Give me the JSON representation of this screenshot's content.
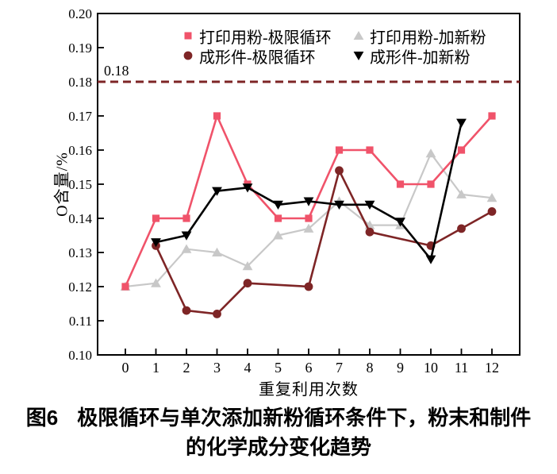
{
  "figure": {
    "caption": {
      "fig_label": "图6",
      "line1": "极限循环与单次添加新粉循环条件下，粉末和制件",
      "line2": "的化学成分变化趋势"
    }
  },
  "chart_data": {
    "type": "line",
    "title": "",
    "xlabel": "重复利用次数",
    "ylabel": "O含量/%",
    "xlim": [
      -0.91,
      12.91
    ],
    "ylim": [
      0.1,
      0.2
    ],
    "x_ticks": [
      0,
      1,
      2,
      3,
      4,
      5,
      6,
      7,
      8,
      9,
      10,
      11,
      12
    ],
    "x_tick_labels": [
      "0",
      "1",
      "2",
      "3",
      "4",
      "5",
      "6",
      "7",
      "8",
      "9",
      "10",
      "11",
      "12"
    ],
    "y_ticks": [
      0.1,
      0.11,
      0.12,
      0.13,
      0.14,
      0.15,
      0.16,
      0.17,
      0.18,
      0.19,
      0.2
    ],
    "y_tick_labels": [
      "0.10",
      "0.11",
      "0.12",
      "0.13",
      "0.14",
      "0.15",
      "0.16",
      "0.17",
      "0.18",
      "0.19",
      "0.20"
    ],
    "grid": false,
    "legend_position": "top-center-inside",
    "axis_color": "#000000",
    "reference_line": {
      "y": 0.18,
      "label": "0.18",
      "color": "#7e2526",
      "style": "dashed"
    },
    "series": [
      {
        "name": "打印用粉-极限循环",
        "marker": "square",
        "color": "#f0536a",
        "x": [
          0,
          1,
          2,
          3,
          4,
          5,
          6,
          7,
          8,
          9,
          10,
          11,
          12
        ],
        "y": [
          0.12,
          0.14,
          0.14,
          0.17,
          0.15,
          0.14,
          0.14,
          0.16,
          0.16,
          0.15,
          0.15,
          0.16,
          0.17
        ]
      },
      {
        "name": "打印用粉-加新粉",
        "marker": "triangle-up",
        "color": "#c8c8c8",
        "x": [
          0,
          1,
          2,
          3,
          4,
          5,
          6,
          7,
          8,
          9,
          10,
          11,
          12
        ],
        "y": [
          0.12,
          0.121,
          0.131,
          0.13,
          0.126,
          0.135,
          0.137,
          0.145,
          0.138,
          0.138,
          0.159,
          0.147,
          0.146
        ]
      },
      {
        "name": "成形件-极限循环",
        "marker": "circle",
        "color": "#7e2526",
        "x": [
          1,
          2,
          3,
          4,
          6,
          7,
          8,
          10,
          11,
          12
        ],
        "y": [
          0.132,
          0.113,
          0.112,
          0.121,
          0.12,
          0.154,
          0.136,
          0.132,
          0.137,
          0.142
        ]
      },
      {
        "name": "成形件-加新粉",
        "marker": "triangle-down",
        "color": "#000000",
        "x": [
          1,
          2,
          3,
          4,
          5,
          6,
          7,
          8,
          9,
          10,
          11
        ],
        "y": [
          0.133,
          0.135,
          0.148,
          0.149,
          0.144,
          0.145,
          0.144,
          0.144,
          0.139,
          0.128,
          0.168
        ]
      }
    ],
    "draw_order": [
      1,
      0,
      2,
      3
    ]
  }
}
